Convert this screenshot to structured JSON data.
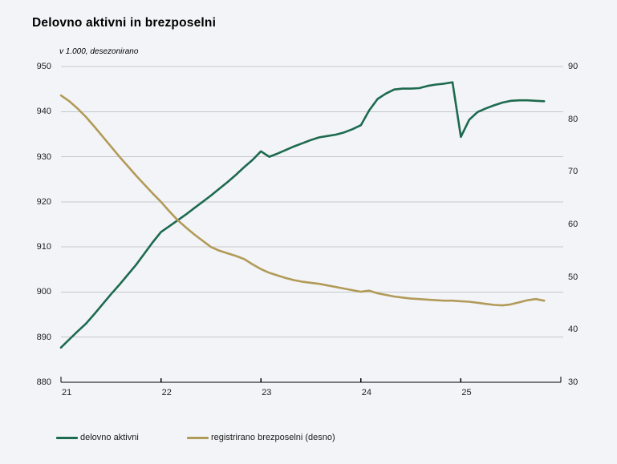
{
  "title": "Delovno aktivni in brezposelni",
  "subtitle": "v 1.000, desezonirano",
  "colors": {
    "background": "#f2f4f7",
    "grid": "#c5c8ca",
    "axis": "#000000",
    "text": "#1f1f1f",
    "employed_line": "#1d6a4e",
    "unemployed_line": "#b29a58"
  },
  "chart_data": {
    "type": "line",
    "frequency": "monthly",
    "x_start": "2021-01",
    "x_end": "2025-11",
    "x_tick_labels": [
      "21",
      "22",
      "23",
      "24",
      "25"
    ],
    "grid": "horizontal",
    "legend_position": "bottom-left",
    "left_axis": {
      "label": "v 1.000",
      "min": 880,
      "max": 950,
      "step": 10,
      "ticks": [
        880,
        890,
        900,
        910,
        920,
        930,
        940,
        950
      ]
    },
    "right_axis": {
      "label": "v 1.000 (desno)",
      "min": 30,
      "max": 90,
      "step": 10,
      "ticks": [
        30,
        40,
        50,
        60,
        70,
        80,
        90
      ]
    },
    "series": [
      {
        "name": "delovno aktivni",
        "axis": "left",
        "color": "#1d6a4e",
        "values": [
          887.7,
          889.5,
          891.3,
          893.0,
          895.1,
          897.3,
          899.5,
          901.6,
          903.8,
          906.0,
          908.5,
          911.0,
          913.3,
          914.6,
          915.9,
          917.2,
          918.6,
          920.0,
          921.4,
          922.9,
          924.4,
          926.0,
          927.7,
          929.3,
          931.2,
          930.0,
          930.7,
          931.5,
          932.3,
          933.0,
          933.7,
          934.3,
          934.6,
          934.9,
          935.4,
          936.1,
          937.0,
          940.3,
          942.8,
          944.0,
          944.9,
          945.1,
          945.1,
          945.2,
          945.7,
          946.0,
          946.2,
          946.5,
          934.4,
          938.2,
          939.9,
          940.7,
          941.4,
          942.0,
          942.4,
          942.5,
          942.5,
          942.4,
          942.3
        ]
      },
      {
        "name": "registrirano brezposelni (desno)",
        "axis": "right",
        "color": "#b29a58",
        "values": [
          84.5,
          83.4,
          82.0,
          80.4,
          78.6,
          76.7,
          74.8,
          72.9,
          71.1,
          69.3,
          67.6,
          65.9,
          64.3,
          62.5,
          60.8,
          59.4,
          58.1,
          56.9,
          55.7,
          55.0,
          54.5,
          54.0,
          53.4,
          52.4,
          51.5,
          50.8,
          50.3,
          49.8,
          49.4,
          49.1,
          48.9,
          48.7,
          48.4,
          48.1,
          47.8,
          47.5,
          47.2,
          47.4,
          46.9,
          46.6,
          46.3,
          46.1,
          45.9,
          45.8,
          45.7,
          45.6,
          45.5,
          45.5,
          45.4,
          45.3,
          45.1,
          44.9,
          44.7,
          44.6,
          44.8,
          45.2,
          45.6,
          45.8,
          45.5
        ]
      }
    ]
  }
}
